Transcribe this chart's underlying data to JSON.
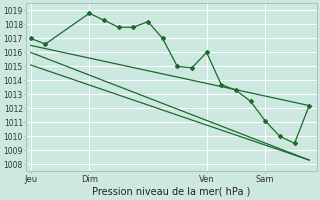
{
  "xlabel": "Pression niveau de la mer( hPa )",
  "ylim": [
    1007.5,
    1019.5
  ],
  "yticks": [
    1008,
    1009,
    1010,
    1011,
    1012,
    1013,
    1014,
    1015,
    1016,
    1017,
    1018,
    1019
  ],
  "background_color": "#cde8e0",
  "grid_color": "#ffffff",
  "line_color": "#1a6b2a",
  "marker_color": "#1a6b2a",
  "x_tick_labels": [
    "Jeu",
    "Dim",
    "Ven",
    "Sam"
  ],
  "x_tick_positions": [
    0,
    4,
    12,
    16
  ],
  "series1_x": [
    0,
    1,
    4,
    5,
    6,
    7,
    8,
    9,
    10,
    11,
    12,
    13,
    14,
    15,
    16,
    17,
    18,
    19
  ],
  "series1_y": [
    1017.0,
    1016.6,
    1018.8,
    1018.3,
    1017.8,
    1017.8,
    1018.2,
    1017.0,
    1015.0,
    1014.9,
    1016.0,
    1013.7,
    1013.3,
    1012.5,
    1011.1,
    1010.0,
    1009.5,
    1012.2
  ],
  "series2_x": [
    0,
    19
  ],
  "series2_y": [
    1016.5,
    1012.2
  ],
  "series3_x": [
    0,
    19
  ],
  "series3_y": [
    1015.1,
    1008.3
  ],
  "series4_x": [
    0,
    19
  ],
  "series4_y": [
    1016.0,
    1008.3
  ],
  "xlim": [
    -0.3,
    19.5
  ]
}
